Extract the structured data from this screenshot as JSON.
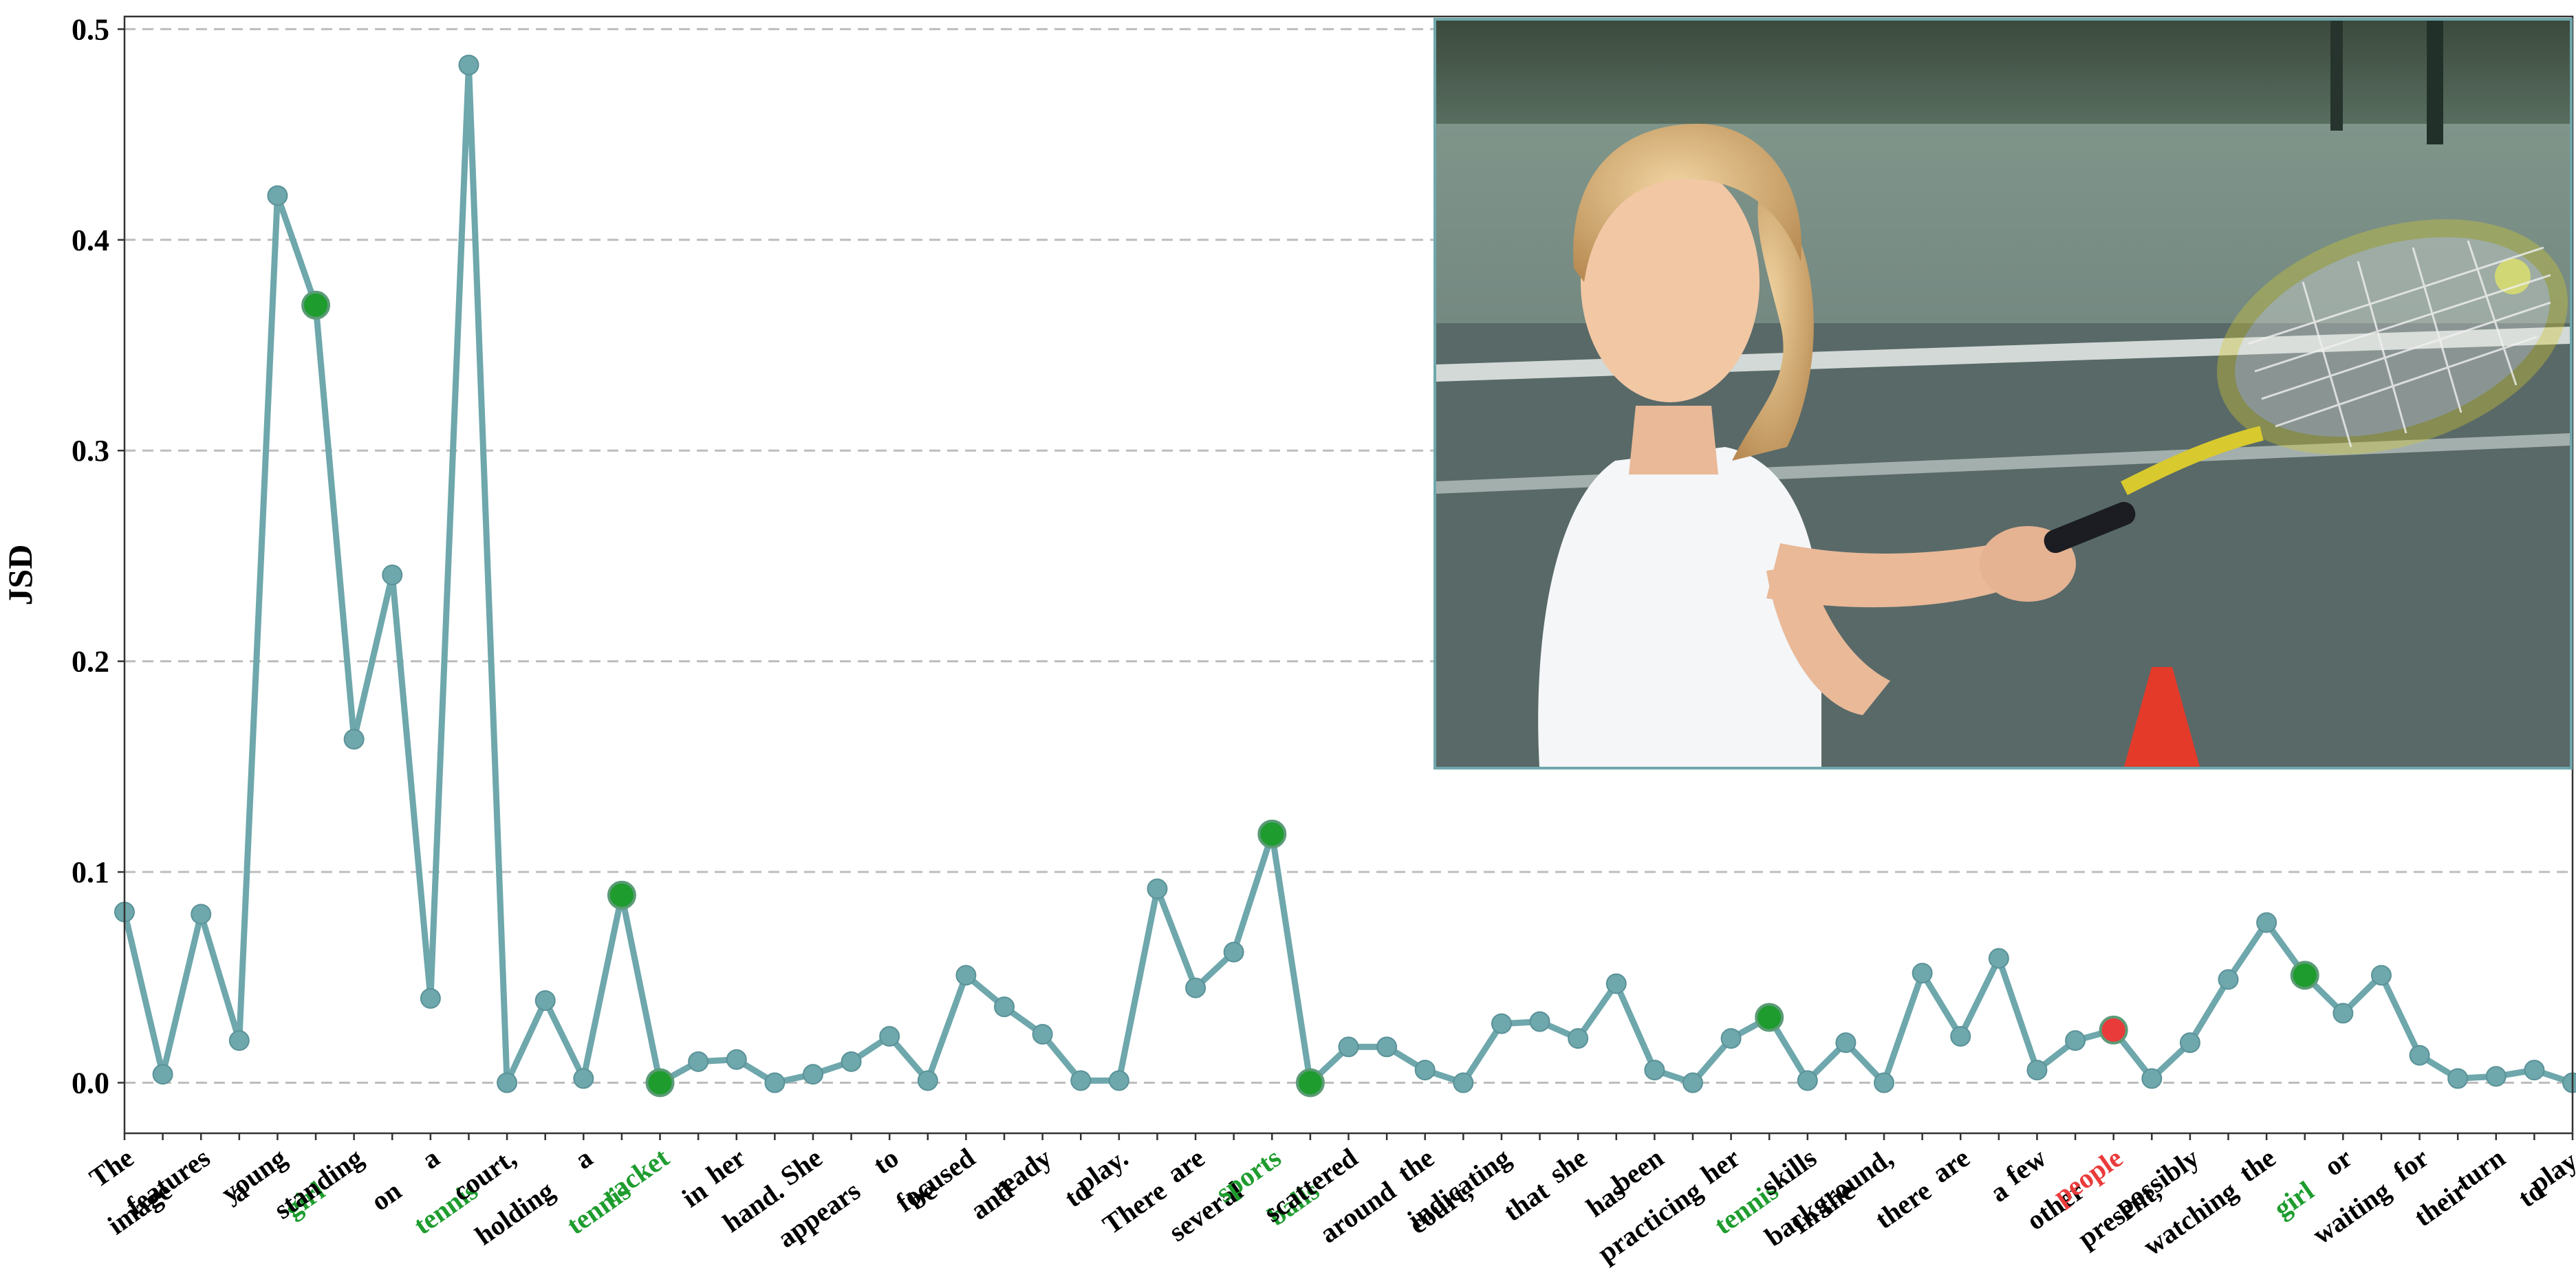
{
  "chart_data": {
    "type": "line",
    "title": "",
    "xlabel": "",
    "ylabel": "JSD",
    "ylim": [
      -0.024,
      0.506
    ],
    "yticks": [
      0.0,
      0.1,
      0.2,
      0.3,
      0.4,
      0.5
    ],
    "ytick_labels": [
      "0.0",
      "0.1",
      "0.2",
      "0.3",
      "0.4",
      "0.5"
    ],
    "grid": "horizontal dashed",
    "line_color": "#6ea7ac",
    "colors": {
      "line": "#6ea7ac",
      "hallucination_free_object": "#1e9c2e",
      "hallucinated_object": "#ea3b3b",
      "default_label": "#000000"
    },
    "tokens": [
      "The",
      "image",
      "features",
      "a",
      "young",
      "girl",
      "standing",
      "on",
      "a",
      "tennis",
      "court,",
      "holding",
      "a",
      "tennis",
      "racket",
      "in",
      "her",
      "hand.",
      "She",
      "appears",
      "to",
      "be",
      "focused",
      "and",
      "ready",
      "to",
      "play.",
      "There",
      "are",
      "several",
      "sports",
      "balls",
      "scattered",
      "around",
      "the",
      "court,",
      "indicating",
      "that",
      "she",
      "has",
      "been",
      "practicing",
      "her",
      "tennis",
      "skills",
      "In the",
      "background,",
      "there",
      "are",
      "a",
      "few",
      "other",
      "people",
      "present,",
      "possibly",
      "watching",
      "the",
      "girl",
      "or",
      "waiting",
      "for",
      "their",
      "turn",
      "to",
      "play."
    ],
    "values": [
      0.081,
      0.004,
      0.08,
      0.02,
      0.421,
      0.369,
      0.163,
      0.241,
      0.04,
      0.483,
      0.0,
      0.039,
      0.002,
      0.089,
      0.0,
      0.01,
      0.011,
      0.0,
      0.004,
      0.01,
      0.022,
      0.001,
      0.051,
      0.036,
      0.023,
      0.001,
      0.001,
      0.092,
      0.045,
      0.062,
      0.118,
      0.0,
      0.017,
      0.017,
      0.006,
      0.0,
      0.028,
      0.029,
      0.021,
      0.047,
      0.006,
      0.0,
      0.021,
      0.031,
      0.001,
      0.019,
      0.0,
      0.052,
      0.022,
      0.059,
      0.006,
      0.02,
      0.025,
      0.002,
      0.019,
      0.049,
      0.076,
      0.051,
      0.033,
      0.051,
      0.013,
      0.002,
      0.003,
      0.006,
      0.0
    ],
    "point_status": [
      "n",
      "n",
      "n",
      "n",
      "n",
      "g",
      "n",
      "n",
      "n",
      "n",
      "n",
      "n",
      "n",
      "g",
      "g",
      "n",
      "n",
      "n",
      "n",
      "n",
      "n",
      "n",
      "n",
      "n",
      "n",
      "n",
      "n",
      "n",
      "n",
      "n",
      "g",
      "g",
      "n",
      "n",
      "n",
      "n",
      "n",
      "n",
      "n",
      "n",
      "n",
      "n",
      "n",
      "g",
      "n",
      "n",
      "n",
      "n",
      "n",
      "n",
      "n",
      "n",
      "r",
      "n",
      "n",
      "n",
      "n",
      "g",
      "n",
      "n",
      "n",
      "n",
      "n",
      "n",
      "n"
    ],
    "label_status": [
      "n",
      "n",
      "n",
      "n",
      "n",
      "g",
      "n",
      "n",
      "n",
      "g",
      "n",
      "n",
      "n",
      "g",
      "g",
      "n",
      "n",
      "n",
      "n",
      "n",
      "n",
      "n",
      "n",
      "n",
      "n",
      "n",
      "n",
      "n",
      "n",
      "n",
      "g",
      "g",
      "n",
      "n",
      "n",
      "n",
      "n",
      "n",
      "n",
      "n",
      "n",
      "n",
      "n",
      "g",
      "n",
      "n",
      "n",
      "n",
      "n",
      "n",
      "n",
      "n",
      "r",
      "n",
      "n",
      "n",
      "n",
      "g",
      "n",
      "n",
      "n",
      "n",
      "n",
      "n",
      "n"
    ]
  }
}
